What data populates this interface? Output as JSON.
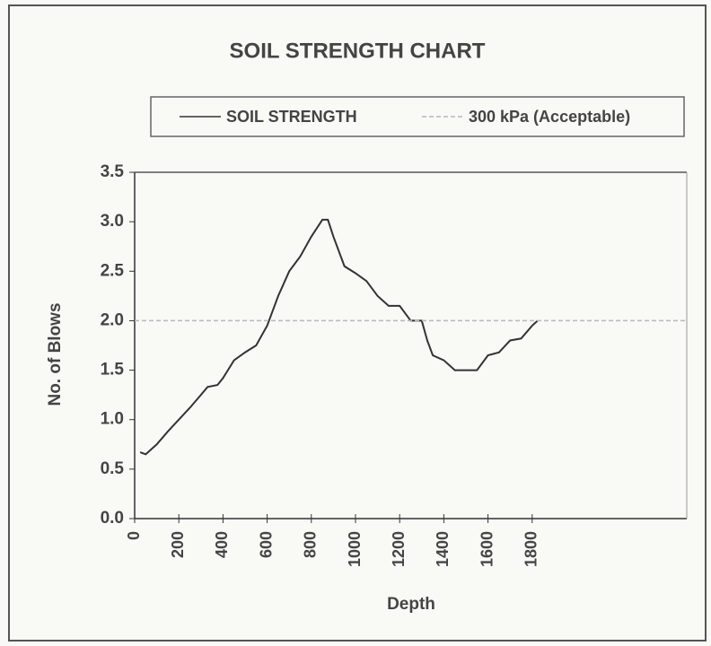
{
  "chart_data": {
    "type": "line",
    "title": "SOIL STRENGTH CHART",
    "x_label": "Depth",
    "y_label": "No. of Blows",
    "xlim": [
      0,
      2500
    ],
    "xticks": [
      0,
      200,
      400,
      600,
      800,
      1000,
      1200,
      1400,
      1600,
      1800
    ],
    "ylim": [
      0,
      3.5
    ],
    "yticks": [
      {
        "value": 0,
        "label": "0.0"
      },
      0.5,
      {
        "value": 1,
        "label": "1.0"
      },
      1.5,
      {
        "value": 2,
        "label": "2.0"
      },
      2.5,
      {
        "value": 3,
        "label": "3.0"
      },
      3.5
    ],
    "legend": "top",
    "series": [
      {
        "name": "SOIL STRENGTH",
        "color": "#333333",
        "dashed": false,
        "x": [
          25,
          50,
          100,
          150,
          200,
          250,
          300,
          330,
          375,
          400,
          450,
          500,
          550,
          600,
          650,
          700,
          750,
          800,
          850,
          875,
          900,
          950,
          1000,
          1050,
          1100,
          1150,
          1200,
          1250,
          1300,
          1325,
          1350,
          1400,
          1450,
          1500,
          1550,
          1600,
          1650,
          1700,
          1750,
          1800,
          1825
        ],
        "values": [
          0.67,
          0.65,
          0.75,
          0.88,
          1.0,
          1.12,
          1.25,
          1.33,
          1.35,
          1.42,
          1.6,
          1.68,
          1.75,
          1.95,
          2.25,
          2.5,
          2.65,
          2.85,
          3.02,
          3.02,
          2.85,
          2.55,
          2.48,
          2.4,
          2.25,
          2.15,
          2.15,
          2.0,
          2.0,
          1.8,
          1.65,
          1.6,
          1.5,
          1.5,
          1.5,
          1.65,
          1.68,
          1.8,
          1.82,
          1.95,
          2.0
        ]
      },
      {
        "name": "300 kPa (Acceptable)",
        "color": "#b8b8b8",
        "dashed": true,
        "x": [
          0,
          2500
        ],
        "values": [
          2,
          2
        ]
      }
    ]
  }
}
